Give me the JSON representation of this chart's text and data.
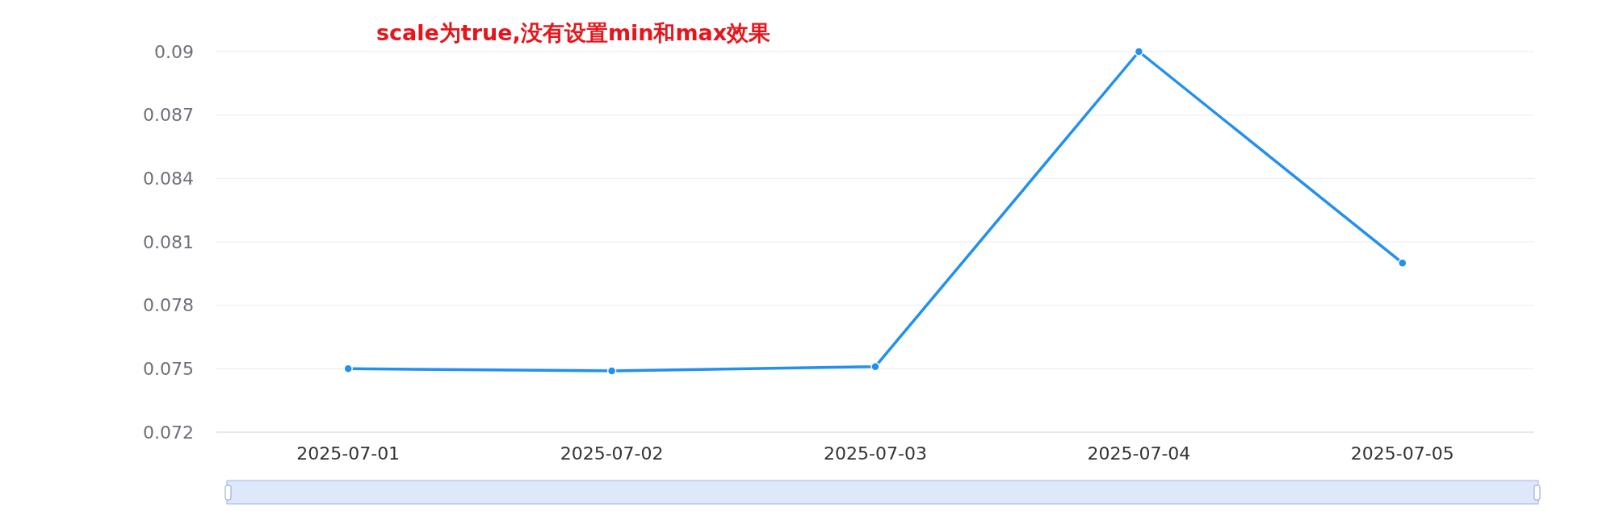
{
  "chart_data": {
    "type": "line",
    "title": "scale为true,没有设置min和max效果",
    "categories": [
      "2025-07-01",
      "2025-07-02",
      "2025-07-03",
      "2025-07-04",
      "2025-07-05"
    ],
    "series": [
      {
        "color": "#2190f0",
        "values": [
          0.075,
          0.0749,
          0.0751,
          0.09,
          0.08
        ]
      }
    ],
    "ylim": [
      0.072,
      0.09
    ],
    "yticks": [
      0.072,
      0.075,
      0.078,
      0.081,
      0.084,
      0.087,
      0.09
    ],
    "grid": "y",
    "marker": "circle",
    "line_style": "solid"
  }
}
